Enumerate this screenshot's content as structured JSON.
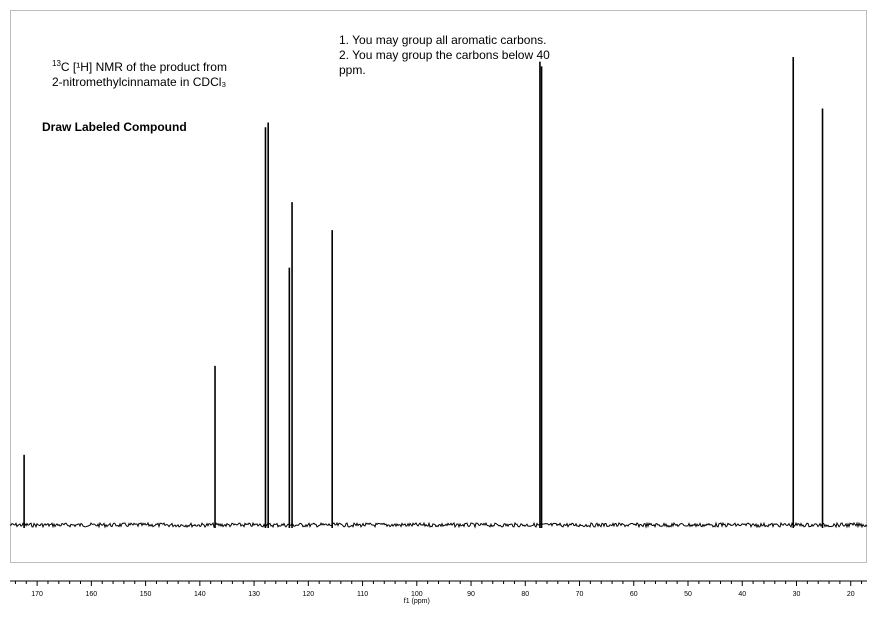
{
  "annotations": {
    "sample_prefix": "13",
    "sample_title_rest": "C [¹H] NMR of the product from",
    "sample_line2": "2-nitromethylcinnamate in CDCl₃",
    "instruction_1": "1. You may group all aromatic carbons.",
    "instruction_2": "2. You may group the carbons below 40",
    "instruction_3": "ppm.",
    "task": "Draw Labeled Compound"
  },
  "chart_data": {
    "type": "line",
    "title": "",
    "xlabel": "f1 (ppm)",
    "ylabel": "",
    "xlim": [
      175,
      17
    ],
    "x_reversed": true,
    "ylim": [
      0,
      1
    ],
    "grid": false,
    "x_ticks": [
      "170",
      "160",
      "150",
      "140",
      "130",
      "120",
      "110",
      "100",
      "90",
      "80",
      "70",
      "60",
      "50",
      "40",
      "30",
      "20"
    ],
    "series": [
      {
        "peaks": [
          {
            "ppm": 172.4,
            "intensity": 0.15
          },
          {
            "ppm": 137.2,
            "intensity": 0.34
          },
          {
            "ppm": 127.9,
            "intensity": 0.85
          },
          {
            "ppm": 127.4,
            "intensity": 0.86
          },
          {
            "ppm": 123.5,
            "intensity": 0.55
          },
          {
            "ppm": 123.0,
            "intensity": 0.69
          },
          {
            "ppm": 115.6,
            "intensity": 0.63
          },
          {
            "ppm": 77.3,
            "intensity": 0.99
          },
          {
            "ppm": 77.0,
            "intensity": 0.98
          },
          {
            "ppm": 30.6,
            "intensity": 1.0
          },
          {
            "ppm": 25.2,
            "intensity": 0.89
          }
        ]
      }
    ]
  }
}
